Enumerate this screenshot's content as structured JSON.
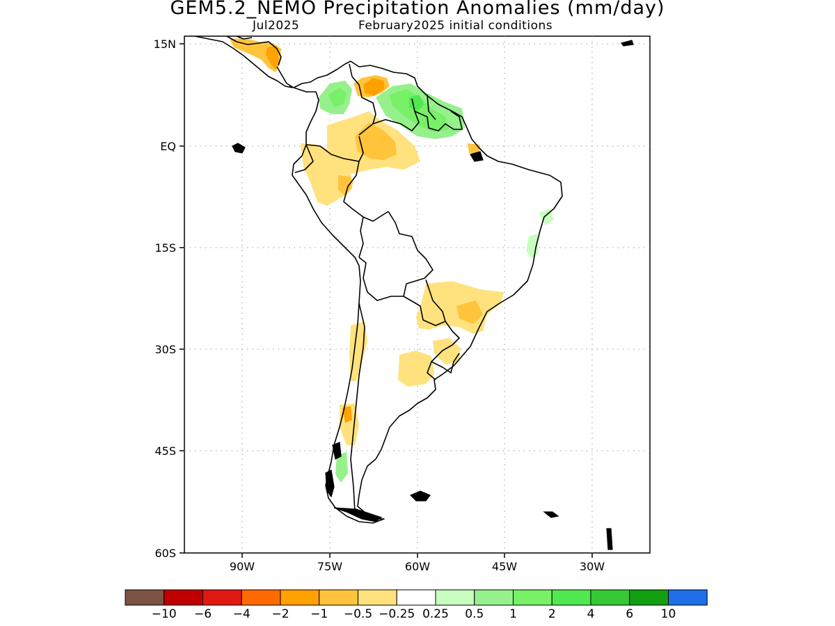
{
  "title": "GEM5.2_NEMO Precipitation Anomalies (mm/day)",
  "subtitle_left": "Jul2025",
  "subtitle_right": "February2025 initial conditions",
  "lat_ticks": [
    "15N",
    "EQ",
    "15S",
    "30S",
    "45S",
    "60S"
  ],
  "lon_ticks": [
    "90W",
    "75W",
    "60W",
    "45W",
    "30W"
  ],
  "colorbar": {
    "colors": [
      "#7b5444",
      "#c00000",
      "#e01a10",
      "#ff6a00",
      "#ffa100",
      "#ffc43c",
      "#ffe27e",
      "#ffffff",
      "#c8ffc0",
      "#96f08c",
      "#78f068",
      "#50e850",
      "#36c836",
      "#12a012",
      "#1e6ee8"
    ],
    "labels": [
      "−10",
      "−6",
      "−4",
      "−2",
      "−1",
      "−0.5",
      "−0.25",
      "0.25",
      "0.5",
      "1",
      "2",
      "4",
      "6",
      "10"
    ]
  }
}
